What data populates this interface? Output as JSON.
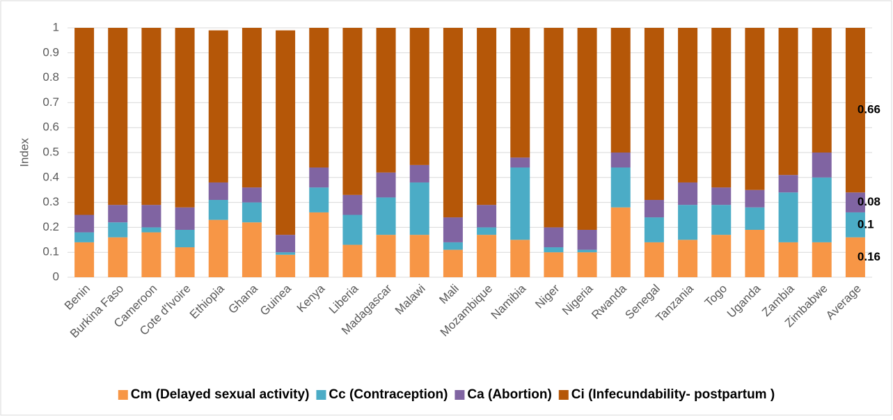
{
  "chart_data": {
    "type": "stacked_bar",
    "y_label": "Index",
    "categories": [
      "Benin",
      "Burkina Faso",
      "Cameroon",
      "Cote d'Ivoire",
      "Ethiopia",
      "Ghana",
      "Guinea",
      "Kenya",
      "Liberia",
      "Madagascar",
      "Malawi",
      "Mali",
      "Mozambique",
      "Namibia",
      "Niger",
      "Nigeria",
      "Rwanda",
      "Senegal",
      "Tanzania",
      "Togo",
      "Uganda",
      "Zambia",
      "Zimbabwe",
      "Average"
    ],
    "series": [
      {
        "name": "Cm (Delayed sexual activity)",
        "color": "#f79646",
        "values": [
          0.14,
          0.16,
          0.18,
          0.12,
          0.23,
          0.22,
          0.09,
          0.26,
          0.13,
          0.17,
          0.17,
          0.11,
          0.17,
          0.15,
          0.1,
          0.1,
          0.28,
          0.14,
          0.15,
          0.17,
          0.19,
          0.14,
          0.14,
          0.16
        ]
      },
      {
        "name": "Cc (Contraception)",
        "color": "#4bacc6",
        "values": [
          0.04,
          0.06,
          0.02,
          0.07,
          0.08,
          0.08,
          0.01,
          0.1,
          0.12,
          0.15,
          0.21,
          0.03,
          0.03,
          0.29,
          0.02,
          0.01,
          0.16,
          0.1,
          0.14,
          0.12,
          0.09,
          0.2,
          0.26,
          0.1
        ]
      },
      {
        "name": "Ca (Abortion)",
        "color": "#8064a2",
        "values": [
          0.07,
          0.07,
          0.09,
          0.09,
          0.07,
          0.06,
          0.07,
          0.08,
          0.08,
          0.1,
          0.07,
          0.1,
          0.09,
          0.04,
          0.08,
          0.08,
          0.06,
          0.07,
          0.09,
          0.07,
          0.07,
          0.07,
          0.1,
          0.08
        ]
      },
      {
        "name": "Ci (Infecundability- postpartum )",
        "color": "#b55708",
        "values": [
          0.75,
          0.71,
          0.71,
          0.72,
          0.61,
          0.64,
          0.82,
          0.56,
          0.67,
          0.58,
          0.55,
          0.76,
          0.71,
          0.52,
          0.8,
          0.81,
          0.5,
          0.69,
          0.62,
          0.64,
          0.65,
          0.59,
          0.5,
          0.66
        ]
      }
    ],
    "ylim": [
      0,
      1
    ],
    "yticks": [
      0,
      0.1,
      0.2,
      0.3,
      0.4,
      0.5,
      0.6,
      0.7,
      0.8,
      0.9,
      1
    ],
    "grid": true,
    "legend": "bottom"
  }
}
